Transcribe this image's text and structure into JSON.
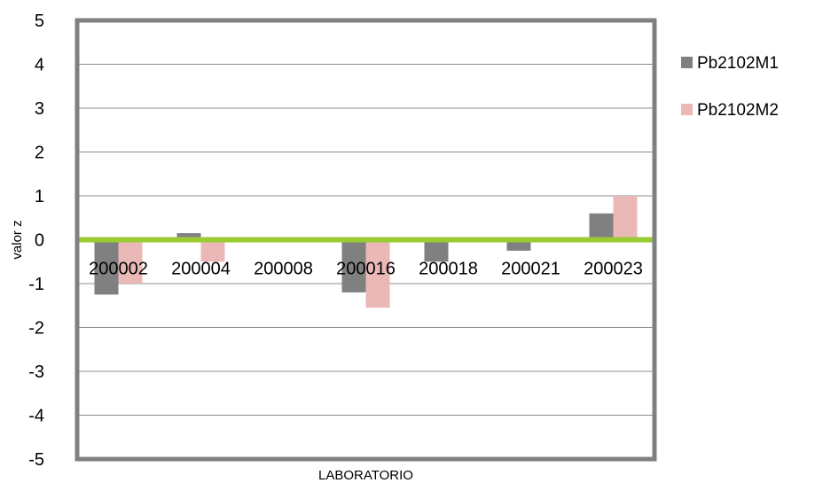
{
  "chart_data": {
    "type": "bar",
    "categories": [
      "200002",
      "200004",
      "200008",
      "200016",
      "200018",
      "200021",
      "200023"
    ],
    "series": [
      {
        "name": "Pb2102M1",
        "color": "#808080",
        "values": [
          -1.25,
          0.15,
          0.0,
          -1.2,
          -0.5,
          -0.25,
          0.6
        ]
      },
      {
        "name": "Pb2102M2",
        "color": "#ebb8b8",
        "values": [
          -1.0,
          -0.5,
          0.0,
          -1.55,
          0.0,
          0.0,
          1.0
        ]
      }
    ],
    "xlabel": "LABORATORIO",
    "ylabel": "valor z",
    "ylim": [
      -5,
      5
    ],
    "yticks": [
      5,
      4,
      3,
      2,
      1,
      0,
      -1,
      -2,
      -3,
      -4,
      -5
    ],
    "grid": true,
    "legend": "right",
    "zero_line_color": "#99cc33",
    "frame_color": "#808080"
  }
}
